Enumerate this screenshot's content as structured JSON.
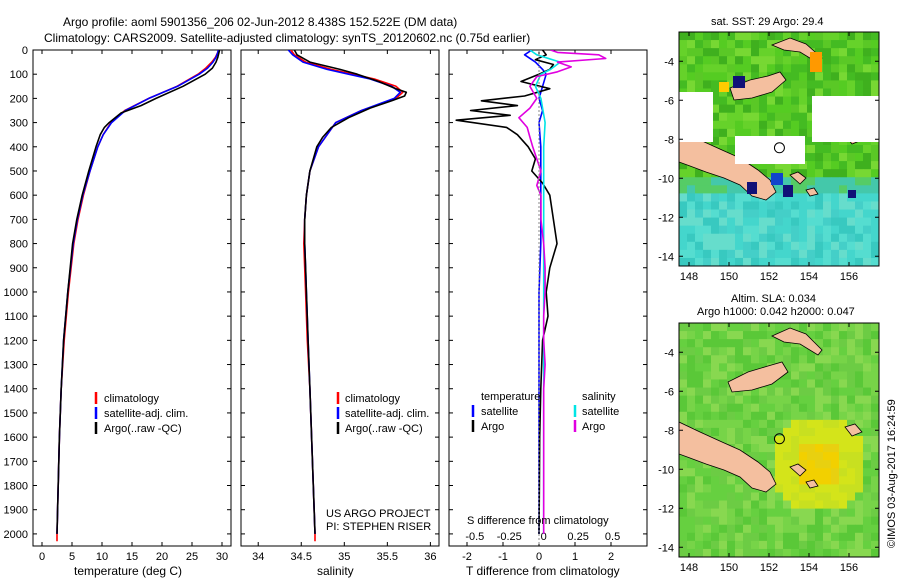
{
  "header": {
    "line1": "Argo profile: aoml 5901356_206 02-Jun-2012 8.438S 152.522E (DM data)",
    "line2": "Climatology: CARS2009. Satellite-adjusted climatology: synTS_20120602.nc (0.75d earlier)"
  },
  "colors": {
    "climatology": "#ff0000",
    "satellite": "#0000ff",
    "argo": "#000000",
    "sal_satellite": "#00e5e5",
    "sal_argo": "#e000e0",
    "land": "#f4bf9f",
    "sea_green": "#44cc22",
    "sea_cyan": "#44dddd"
  },
  "depth_axis": {
    "ticks": [
      0,
      100,
      200,
      300,
      400,
      500,
      600,
      700,
      800,
      900,
      1000,
      1100,
      1200,
      1300,
      1400,
      1500,
      1600,
      1700,
      1800,
      1900,
      2000
    ],
    "range": [
      0,
      2050
    ]
  },
  "annotations": {
    "project": "US ARGO PROJECT",
    "pi": "PI: STEPHEN RISER",
    "stamp": "©IMOS 03-Aug-2017 16:24:59"
  },
  "chart_data": [
    {
      "id": "temperature",
      "type": "line",
      "xlabel": "temperature (deg C)",
      "ylabel": "depth",
      "xlim": [
        -1.5,
        31.5
      ],
      "xticks": [
        0,
        5,
        10,
        15,
        20,
        25,
        30
      ],
      "xtick_labels": [
        "0",
        "5",
        "10",
        "15",
        "20",
        "25",
        "30"
      ],
      "legend": [
        "climatology",
        "satellite-adj. clim.",
        "Argo(..raw -QC)"
      ],
      "series": [
        {
          "name": "climatology",
          "depth": [
            0,
            10,
            30,
            50,
            75,
            100,
            150,
            200,
            250,
            300,
            350,
            400,
            500,
            600,
            700,
            800,
            1000,
            1200,
            1400,
            1600,
            1800,
            2000,
            2030
          ],
          "values": [
            29.4,
            29.3,
            28.9,
            28.3,
            27.3,
            26,
            22.5,
            17.8,
            13.8,
            11.5,
            10.2,
            9.3,
            8,
            6.9,
            6,
            5.3,
            4.4,
            3.7,
            3.2,
            2.9,
            2.7,
            2.5,
            2.5
          ]
        },
        {
          "name": "satellite-adj. clim.",
          "depth": [
            0,
            10,
            30,
            50,
            75,
            100,
            150,
            200,
            250,
            300,
            350,
            400,
            500,
            600,
            700,
            800,
            1000,
            1200,
            1400,
            1600,
            1800,
            2000
          ],
          "values": [
            29.4,
            29.3,
            29,
            28.5,
            27.6,
            26.2,
            22.6,
            17.8,
            13.9,
            11.6,
            10.2,
            9.3,
            8,
            6.8,
            5.9,
            5.2,
            4.3,
            3.6,
            3.2,
            2.9,
            2.7,
            2.5
          ]
        },
        {
          "name": "Argo(..raw -QC)",
          "depth": [
            0,
            10,
            30,
            50,
            75,
            100,
            150,
            200,
            230,
            260,
            300,
            320,
            350,
            400,
            500,
            600,
            700,
            800,
            1000,
            1200,
            1400,
            1600,
            1800,
            2000
          ],
          "values": [
            29.6,
            29.5,
            29.3,
            29,
            28.4,
            27.2,
            23.5,
            19,
            16.5,
            13.2,
            11.2,
            10.4,
            9.7,
            9,
            7.8,
            6.7,
            5.8,
            5.1,
            4.3,
            3.6,
            3.2,
            2.9,
            2.7,
            2.5
          ]
        }
      ]
    },
    {
      "id": "salinity",
      "type": "line",
      "xlabel": "salinity",
      "ylabel": "depth",
      "xlim": [
        33.8,
        36.1
      ],
      "xticks": [
        34,
        34.5,
        35,
        35.5,
        36
      ],
      "xtick_labels": [
        "34",
        "34.5",
        "35",
        "35.5",
        "36"
      ],
      "legend": [
        "climatology",
        "satellite-adj. clim.",
        "Argo(..raw -QC)"
      ],
      "series": [
        {
          "name": "climatology",
          "depth": [
            0,
            20,
            50,
            80,
            100,
            120,
            150,
            175,
            200,
            250,
            300,
            400,
            500,
            600,
            700,
            800,
            900,
            1000,
            1200,
            1400,
            1600,
            1800,
            2000,
            2030
          ],
          "values": [
            34.38,
            34.42,
            34.55,
            34.85,
            35.1,
            35.35,
            35.6,
            35.68,
            35.6,
            35.2,
            34.9,
            34.7,
            34.6,
            34.56,
            34.54,
            34.53,
            34.54,
            34.55,
            34.57,
            34.6,
            34.62,
            34.64,
            34.66,
            34.66
          ]
        },
        {
          "name": "satellite-adj. clim.",
          "depth": [
            0,
            20,
            50,
            80,
            100,
            120,
            150,
            175,
            200,
            250,
            300,
            400,
            500,
            600,
            700,
            800,
            900,
            1000,
            1200,
            1400,
            1600,
            1800,
            2000
          ],
          "values": [
            34.35,
            34.4,
            34.52,
            34.8,
            35.05,
            35.3,
            35.55,
            35.65,
            35.58,
            35.2,
            34.9,
            34.7,
            34.6,
            34.56,
            34.54,
            34.54,
            34.55,
            34.56,
            34.58,
            34.6,
            34.62,
            34.64,
            34.66
          ]
        },
        {
          "name": "Argo(..raw -QC)",
          "depth": [
            0,
            20,
            50,
            80,
            100,
            130,
            160,
            175,
            190,
            210,
            240,
            280,
            320,
            360,
            400,
            500,
            600,
            700,
            800,
            900,
            1000,
            1200,
            1400,
            1600,
            1800,
            2000
          ],
          "values": [
            34.42,
            34.45,
            34.6,
            34.95,
            35.15,
            35.4,
            35.6,
            35.72,
            35.7,
            35.55,
            35.3,
            35.05,
            34.85,
            34.75,
            34.68,
            34.6,
            34.56,
            34.54,
            34.54,
            34.55,
            34.56,
            34.58,
            34.6,
            34.62,
            34.64,
            34.66
          ]
        }
      ]
    },
    {
      "id": "difference",
      "type": "line",
      "xlabel": "T difference from climatology",
      "x2label": "S difference from climatology",
      "ylabel": "depth",
      "xlim": [
        -2.5,
        3.0
      ],
      "xticks": [
        -2,
        -1,
        0,
        1,
        2
      ],
      "xtick_labels": [
        "-2",
        "-1",
        "0",
        "1",
        "2"
      ],
      "x2ticks": [
        -0.5,
        -0.25,
        0,
        0.25,
        0.5
      ],
      "x2tick_labels": [
        "-0.5",
        "-0.25",
        "0",
        "0.25",
        "0.5"
      ],
      "legend_headers": [
        "temperature",
        "salinity"
      ],
      "legend": [
        "satellite",
        "Argo",
        "satellite",
        "Argo"
      ],
      "series": [
        {
          "name": "T satellite",
          "depth": [
            0,
            20,
            50,
            80,
            100,
            150,
            200,
            250,
            300,
            400,
            500,
            600,
            800,
            1000,
            1500,
            2000
          ],
          "values": [
            -0.2,
            -0.4,
            -0.1,
            0.1,
            0.2,
            0.1,
            0,
            0.1,
            0,
            0.05,
            0.05,
            0.05,
            0.05,
            0,
            0,
            0
          ]
        },
        {
          "name": "T Argo",
          "depth": [
            0,
            20,
            40,
            60,
            80,
            100,
            130,
            160,
            190,
            210,
            230,
            250,
            270,
            290,
            320,
            350,
            400,
            450,
            500,
            550,
            600,
            700,
            800,
            900,
            1000,
            1100,
            1200,
            1400,
            1600,
            1800,
            2000
          ],
          "values": [
            0.1,
            0.2,
            -0.1,
            0.4,
            0.3,
            0,
            -0.5,
            0.3,
            -0.4,
            -1.6,
            -0.6,
            -1.9,
            -0.8,
            -2.3,
            -0.9,
            -0.6,
            -0.3,
            -0.1,
            -0.2,
            0.1,
            0.3,
            0.4,
            0.5,
            0.3,
            0.2,
            0.25,
            0.1,
            0.05,
            0.02,
            0.01,
            0
          ]
        },
        {
          "name": "S satellite",
          "depth": [
            0,
            20,
            50,
            80,
            100,
            150,
            200,
            300,
            400,
            500,
            600,
            800,
            1000,
            1500,
            2000
          ],
          "values": [
            -0.1,
            -0.05,
            0.12,
            0.05,
            -0.02,
            -0.06,
            -0.02,
            0.01,
            0,
            0,
            0,
            0,
            0,
            0,
            0
          ]
        },
        {
          "name": "S Argo",
          "depth": [
            0,
            10,
            20,
            35,
            50,
            70,
            90,
            110,
            150,
            200,
            240,
            280,
            320,
            360,
            400,
            450,
            500,
            560,
            600,
            700,
            800,
            900,
            1000,
            1100,
            1200,
            1300,
            1400,
            1600,
            1800,
            2000
          ],
          "values": [
            0.05,
            0.1,
            0.4,
            0.45,
            0.1,
            0.2,
            0.1,
            -0.05,
            -0.1,
            -0.05,
            -0.1,
            -0.18,
            -0.12,
            -0.1,
            -0.08,
            -0.05,
            -0.02,
            -0.05,
            -0.02,
            -0.02,
            0,
            0.01,
            0.01,
            0,
            0,
            0.01,
            0,
            0,
            0,
            0
          ]
        }
      ]
    },
    {
      "id": "sst_map",
      "type": "heatmap",
      "title": "sat. SST: 29 Argo: 29.4",
      "xticks": [
        148,
        150,
        152,
        154,
        156
      ],
      "xtick_labels": [
        "148",
        "150",
        "152",
        "154",
        "156"
      ],
      "yticks": [
        -4,
        -6,
        -8,
        -10,
        -12,
        -14
      ],
      "ytick_labels": [
        "-4",
        "-6",
        "-8",
        "-10",
        "-12",
        "-14"
      ],
      "xlim": [
        147.5,
        157.5
      ],
      "ylim": [
        -14.5,
        -2.5
      ],
      "argo_position": [
        152.522,
        -8.438
      ]
    },
    {
      "id": "sla_map",
      "type": "heatmap",
      "title": "Altim. SLA: 0.034",
      "subtitle": "Argo h1000: 0.042 h2000: 0.047",
      "xticks": [
        148,
        150,
        152,
        154,
        156
      ],
      "xtick_labels": [
        "148",
        "150",
        "152",
        "154",
        "156"
      ],
      "yticks": [
        -4,
        -6,
        -8,
        -10,
        -12,
        -14
      ],
      "ytick_labels": [
        "-4",
        "-6",
        "-8",
        "-10",
        "-12",
        "-14"
      ],
      "xlim": [
        147.5,
        157.5
      ],
      "ylim": [
        -14.5,
        -2.5
      ],
      "argo_position": [
        152.522,
        -8.438
      ]
    }
  ]
}
